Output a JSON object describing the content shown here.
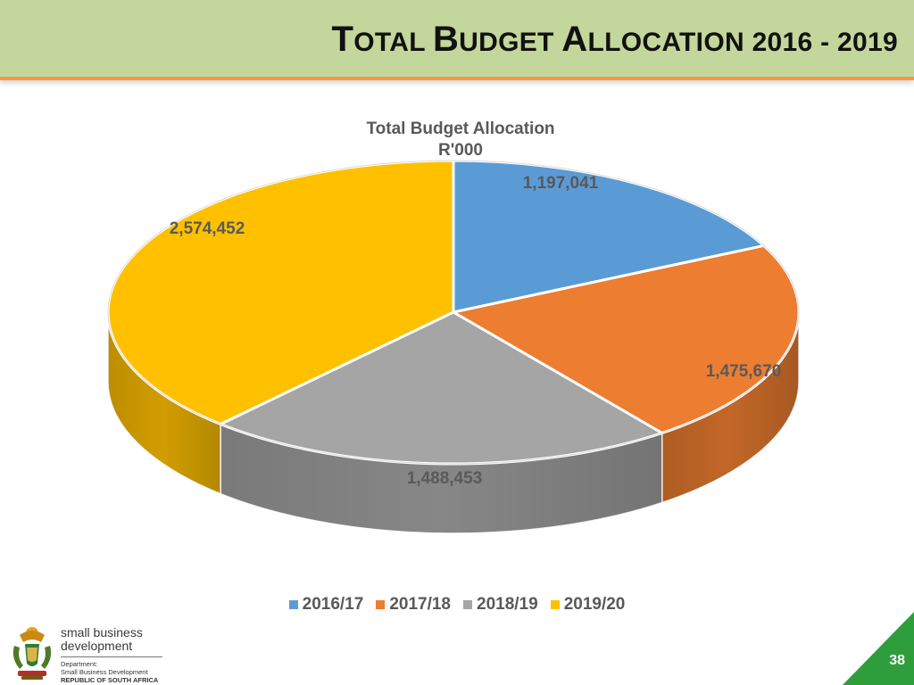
{
  "slide": {
    "title_caps": [
      "T",
      "B",
      "A"
    ],
    "title_rest": [
      "OTAL ",
      "UDGET ",
      "LLOCATION "
    ],
    "title_years": "2016 - 2019",
    "page_number": "38"
  },
  "chart_data": {
    "type": "pie",
    "title": "Total Budget Allocation",
    "subtitle": "R'000",
    "categories": [
      "2016/17",
      "2017/18",
      "2018/19",
      "2019/20"
    ],
    "values": [
      1197041,
      1475670,
      1488453,
      2574452
    ],
    "data_labels": [
      "1,197,041",
      "1,475,670",
      "1,488,453",
      "2,574,452"
    ],
    "colors": [
      "#5b9bd5",
      "#ed7d31",
      "#a5a5a5",
      "#ffc000"
    ],
    "style": "3d",
    "legend_position": "bottom"
  },
  "footer": {
    "logo_brand_line1": "small business",
    "logo_brand_line2": "development",
    "logo_line1": "Department:",
    "logo_line2": "Small Business Development",
    "logo_line3": "REPUBLIC OF SOUTH AFRICA"
  }
}
